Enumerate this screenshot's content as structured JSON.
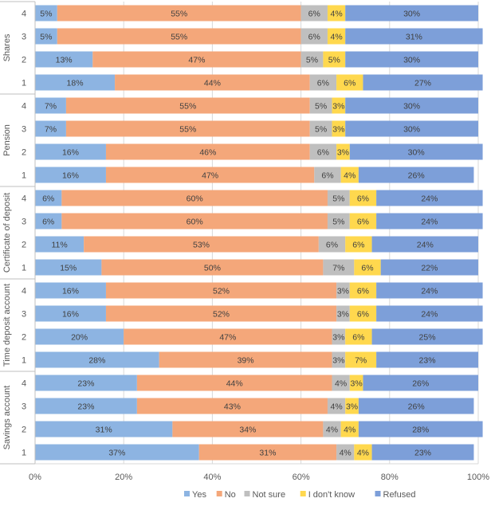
{
  "chart_data": {
    "type": "bar",
    "orientation": "horizontal",
    "stacked": true,
    "percent_stacked": true,
    "groups": [
      {
        "name": "Shares",
        "rows": [
          {
            "label": "4",
            "values": [
              5,
              55,
              6,
              4,
              30
            ]
          },
          {
            "label": "3",
            "values": [
              5,
              55,
              6,
              4,
              31
            ]
          },
          {
            "label": "2",
            "values": [
              13,
              47,
              5,
              5,
              30
            ]
          },
          {
            "label": "1",
            "values": [
              18,
              44,
              6,
              6,
              27
            ]
          }
        ]
      },
      {
        "name": "Pension",
        "rows": [
          {
            "label": "4",
            "values": [
              7,
              55,
              5,
              3,
              30
            ]
          },
          {
            "label": "3",
            "values": [
              7,
              55,
              5,
              3,
              30
            ]
          },
          {
            "label": "2",
            "values": [
              16,
              46,
              6,
              3,
              30
            ]
          },
          {
            "label": "1",
            "values": [
              16,
              47,
              6,
              4,
              26
            ]
          }
        ]
      },
      {
        "name": "Certificate of deposit",
        "rows": [
          {
            "label": "4",
            "values": [
              6,
              60,
              5,
              6,
              24
            ]
          },
          {
            "label": "3",
            "values": [
              6,
              60,
              5,
              6,
              24
            ]
          },
          {
            "label": "2",
            "values": [
              11,
              53,
              6,
              6,
              24
            ]
          },
          {
            "label": "1",
            "values": [
              15,
              50,
              7,
              6,
              22
            ]
          }
        ]
      },
      {
        "name": "Time deposit account",
        "rows": [
          {
            "label": "4",
            "values": [
              16,
              52,
              3,
              6,
              24
            ]
          },
          {
            "label": "3",
            "values": [
              16,
              52,
              3,
              6,
              24
            ]
          },
          {
            "label": "2",
            "values": [
              20,
              47,
              3,
              6,
              25
            ]
          },
          {
            "label": "1",
            "values": [
              28,
              39,
              3,
              7,
              23
            ]
          }
        ]
      },
      {
        "name": "Savings account",
        "rows": [
          {
            "label": "4",
            "values": [
              23,
              44,
              4,
              3,
              26
            ]
          },
          {
            "label": "3",
            "values": [
              23,
              43,
              4,
              3,
              26
            ]
          },
          {
            "label": "2",
            "values": [
              31,
              34,
              4,
              4,
              28
            ]
          },
          {
            "label": "1",
            "values": [
              37,
              31,
              4,
              4,
              23
            ]
          }
        ]
      }
    ],
    "series": [
      {
        "name": "Yes",
        "color": "#8db4e2"
      },
      {
        "name": "No",
        "color": "#f4a77a"
      },
      {
        "name": "Not sure",
        "color": "#bfbfbf"
      },
      {
        "name": "I don't know",
        "color": "#ffd84e"
      },
      {
        "name": "Refused",
        "color": "#7d9fd9"
      }
    ],
    "x_ticks": [
      "0%",
      "20%",
      "40%",
      "60%",
      "80%",
      "100%"
    ],
    "xlim": [
      0,
      100
    ],
    "grid": true,
    "legend_position": "bottom",
    "title": "",
    "xlabel": "",
    "ylabel": ""
  }
}
